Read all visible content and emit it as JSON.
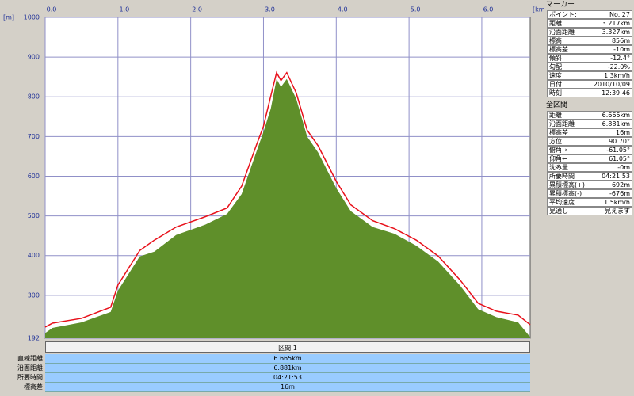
{
  "chart_data": {
    "type": "area",
    "y_label": "[m]",
    "x_label": "[km]",
    "xlim": [
      0,
      6.665
    ],
    "ylim": [
      192,
      1000
    ],
    "xticks": [
      {
        "value": 0,
        "label": "0.0"
      },
      {
        "value": 1,
        "label": "1.0"
      },
      {
        "value": 2,
        "label": "2.0"
      },
      {
        "value": 3,
        "label": "3.0"
      },
      {
        "value": 4,
        "label": "4.0"
      },
      {
        "value": 5,
        "label": "5.0"
      },
      {
        "value": 6,
        "label": "6.0"
      }
    ],
    "yticks": [
      192,
      300,
      400,
      500,
      600,
      700,
      800,
      900,
      1000
    ],
    "grid": true,
    "x": [
      0,
      0.1,
      0.5,
      0.9,
      1.0,
      1.3,
      1.5,
      1.8,
      2.2,
      2.5,
      2.7,
      2.9,
      3.0,
      3.1,
      3.18,
      3.24,
      3.32,
      3.45,
      3.6,
      3.75,
      4.0,
      4.2,
      4.5,
      4.8,
      5.1,
      5.4,
      5.7,
      5.95,
      6.2,
      6.5,
      6.665
    ],
    "series": [
      {
        "color": "#5f8f2a",
        "fill": true,
        "values": [
          205,
          218,
          232,
          258,
          312,
          398,
          410,
          452,
          478,
          505,
          555,
          660,
          712,
          770,
          845,
          825,
          845,
          795,
          700,
          660,
          570,
          512,
          472,
          455,
          425,
          385,
          325,
          265,
          245,
          232,
          195
        ]
      },
      {
        "color": "#e8101a",
        "fill": false,
        "values": [
          220,
          230,
          242,
          270,
          326,
          413,
          439,
          472,
          498,
          520,
          575,
          677,
          726,
          802,
          861,
          841,
          861,
          810,
          716,
          677,
          587,
          528,
          488,
          468,
          439,
          399,
          339,
          280,
          260,
          250,
          226
        ]
      }
    ]
  },
  "marker": {
    "title": "マーカー",
    "rows": [
      [
        "ポイント:",
        "No. 27"
      ],
      [
        "距離",
        "3.217km"
      ],
      [
        "沿面距離",
        "3.327km"
      ],
      [
        "標高",
        "856m"
      ],
      [
        "標高差",
        "-10m"
      ],
      [
        "傾斜",
        "-12.4°"
      ],
      [
        "勾配",
        "-22.0%"
      ],
      [
        "速度",
        "1.3km/h"
      ],
      [
        "日付",
        "2010/10/09"
      ],
      [
        "時刻",
        "12:39:46"
      ]
    ]
  },
  "total": {
    "title": "全区間",
    "rows": [
      [
        "距離",
        "6.665km"
      ],
      [
        "沿面距離",
        "6.881km"
      ],
      [
        "標高差",
        "16m"
      ],
      [
        "方位",
        "90.70°"
      ],
      [
        "俯角→",
        "-61.05°"
      ],
      [
        "仰角←",
        "61.05°"
      ],
      [
        "沈み量",
        "-0m"
      ],
      [
        "所要時間",
        "04:21:53"
      ],
      [
        "累積標高(+)",
        "692m"
      ],
      [
        "累積標高(-)",
        "-676m"
      ],
      [
        "平均速度",
        "1.5km/h"
      ],
      [
        "見通し",
        "見えます"
      ]
    ]
  },
  "section": {
    "title": "区間 1",
    "rows": [
      [
        "直線距離",
        "6.665km"
      ],
      [
        "沿面距離",
        "6.881km"
      ],
      [
        "所要時間",
        "04:21:53"
      ],
      [
        "標高差",
        "16m"
      ]
    ]
  }
}
